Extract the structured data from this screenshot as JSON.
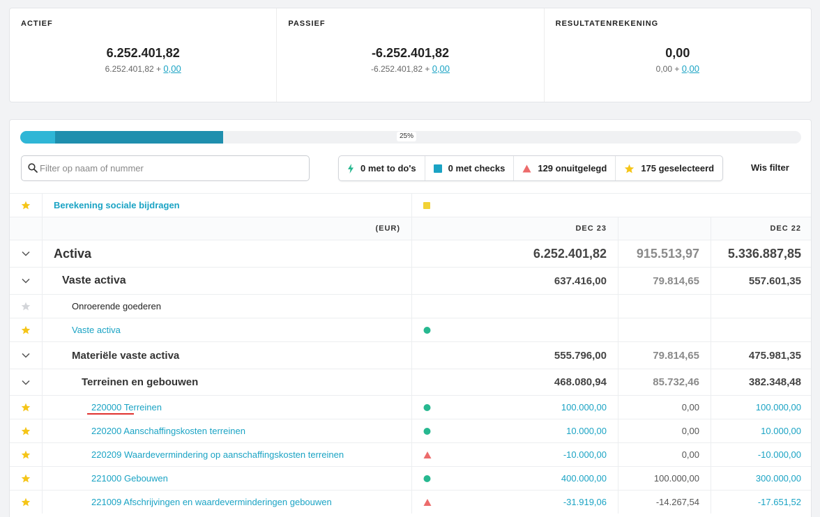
{
  "summary": {
    "actief": {
      "title": "ACTIEF",
      "value": "6.252.401,82",
      "sub_prefix": "6.252.401,82 +",
      "sub_link": "0,00"
    },
    "passief": {
      "title": "PASSIEF",
      "value": "-6.252.401,82",
      "sub_prefix": "-6.252.401,82 +",
      "sub_link": "0,00"
    },
    "resultaat": {
      "title": "RESULTATENREKENING",
      "value": "0,00",
      "sub_prefix": "0,00 +",
      "sub_link": "0,00"
    }
  },
  "progress": {
    "label": "25%",
    "segments": [
      0.045,
      0.215
    ]
  },
  "search": {
    "placeholder": "Filter op naam of nummer",
    "value": ""
  },
  "filters": [
    {
      "label": "0 met to do's",
      "icon": "bolt-icon"
    },
    {
      "label": "0 met checks",
      "icon": "square-icon"
    },
    {
      "label": "129 onuitgelegd",
      "icon": "triangle-icon"
    },
    {
      "label": "175 geselecteerd",
      "icon": "star-icon"
    }
  ],
  "clear_filter": "Wis filter",
  "colors": {
    "accent": "#1aa3c4",
    "star": "#f5c518",
    "green": "#27b890",
    "red": "#ec6b6b",
    "yellow": "#f2d235"
  },
  "table": {
    "top_row": {
      "label": "Berekening sociale bijdragen",
      "icon": "star-icon",
      "marker": "yellow-square"
    },
    "header": {
      "currency": "(EUR)",
      "col1": "DEC 23",
      "col2": "",
      "col3": "DEC 22"
    },
    "rows": [
      {
        "type": "group0",
        "label": "Activa",
        "v1": "6.252.401,82",
        "v2": "915.513,97",
        "v3": "5.336.887,85"
      },
      {
        "type": "group1",
        "label": "Vaste activa",
        "v1": "637.416,00",
        "v2": "79.814,65",
        "v3": "557.601,35"
      },
      {
        "type": "plain",
        "label": "Onroerende goederen",
        "star": "grey"
      },
      {
        "type": "link",
        "label": "Vaste activa",
        "star": "gold",
        "marker": "green-dot"
      },
      {
        "type": "group2",
        "label": "Materiële vaste activa",
        "v1": "555.796,00",
        "v2": "79.814,65",
        "v3": "475.981,35"
      },
      {
        "type": "group3",
        "label": "Terreinen en gebouwen",
        "v1": "468.080,94",
        "v2": "85.732,46",
        "v3": "382.348,48"
      },
      {
        "type": "account",
        "label": "220000 Terreinen",
        "star": "gold",
        "marker": "green-dot",
        "v1": "100.000,00",
        "v2": "0,00",
        "v3": "100.000,00"
      },
      {
        "type": "account",
        "label": "220200 Aanschaffingskosten terreinen",
        "star": "gold",
        "marker": "green-dot",
        "v1": "10.000,00",
        "v2": "0,00",
        "v3": "10.000,00"
      },
      {
        "type": "account",
        "label": "220209 Waardevermindering op aanschaffingskosten terreinen",
        "star": "gold",
        "marker": "red-triangle",
        "v1": "-10.000,00",
        "v2": "0,00",
        "v3": "-10.000,00"
      },
      {
        "type": "account",
        "label": "221000 Gebouwen",
        "star": "gold",
        "marker": "green-dot",
        "v1": "400.000,00",
        "v2": "100.000,00",
        "v3": "300.000,00"
      },
      {
        "type": "account",
        "label": "221009 Afschrijvingen en waardeverminderingen gebouwen",
        "star": "gold",
        "marker": "red-triangle",
        "v1": "-31.919,06",
        "v2": "-14.267,54",
        "v3": "-17.651,52"
      }
    ]
  }
}
